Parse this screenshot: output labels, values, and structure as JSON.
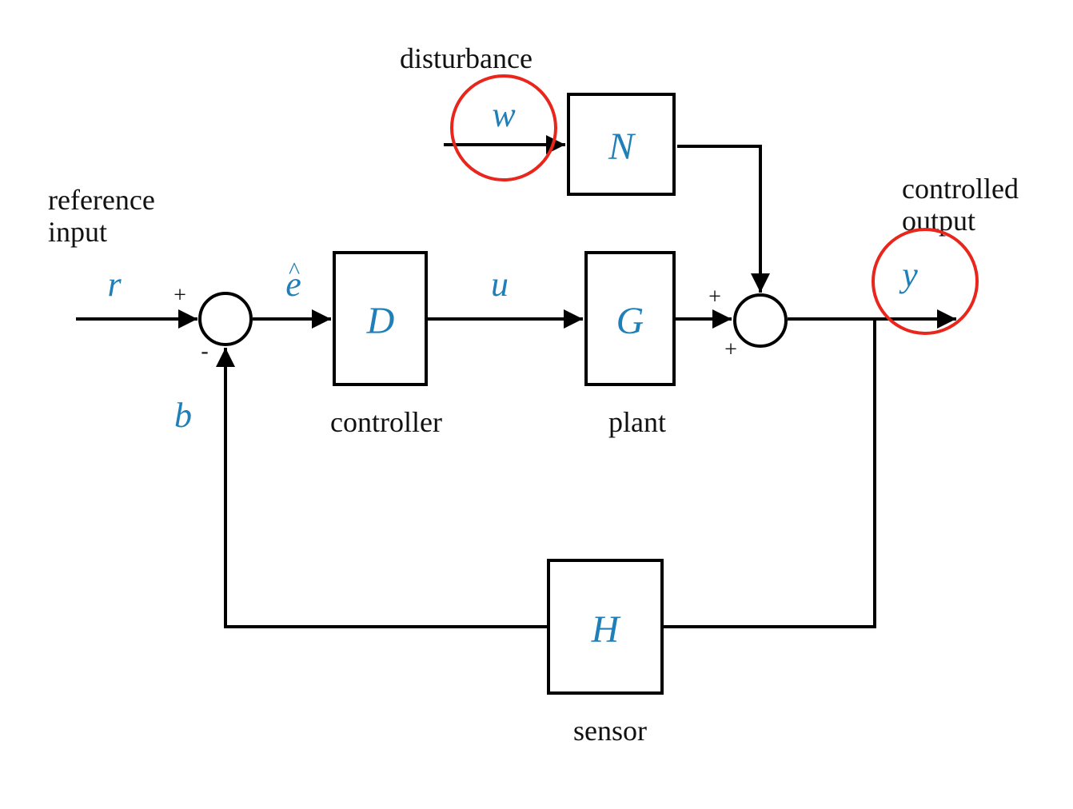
{
  "colors": {
    "variable": "#1f7fb8",
    "highlight": "#e8261c",
    "line": "#000000",
    "text": "#111111"
  },
  "labels": {
    "disturbance": "disturbance",
    "reference_line1": "reference",
    "reference_line2": "input",
    "controlled_line1": "controlled",
    "controlled_line2": "output",
    "controller": "controller",
    "plant": "plant",
    "sensor": "sensor"
  },
  "signals": {
    "w": "w",
    "r": "r",
    "e_hat": "e",
    "e_hat_accent": "^",
    "u": "u",
    "y": "y",
    "b": "b"
  },
  "blocks": {
    "N": "N",
    "D": "D",
    "G": "G",
    "H": "H"
  },
  "signs": {
    "sum1_top": "+",
    "sum1_bottom": "-",
    "sum2_top": "+",
    "sum2_bottom": "+"
  },
  "highlights": [
    "w",
    "y"
  ]
}
